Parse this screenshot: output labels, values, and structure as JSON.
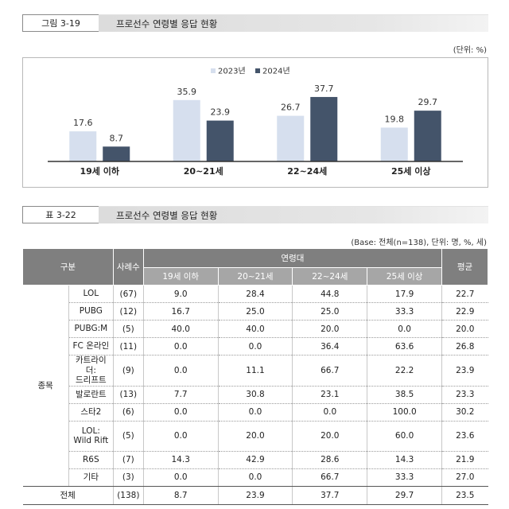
{
  "figure": {
    "label": "그림 3-19",
    "title": "프로선수 연령별 응답 현황",
    "unit": "(단위: %)"
  },
  "chart_data": {
    "type": "bar",
    "categories": [
      "19세 이하",
      "20~21세",
      "22~24세",
      "25세 이상"
    ],
    "series": [
      {
        "name": "2023년",
        "values": [
          17.6,
          35.9,
          26.7,
          19.8
        ],
        "color": "#d6dfee"
      },
      {
        "name": "2024년",
        "values": [
          8.7,
          23.9,
          37.7,
          29.7
        ],
        "color": "#44546a"
      }
    ],
    "ylim": [
      0,
      40
    ],
    "legend": "top-center",
    "grid": false
  },
  "table": {
    "label": "표 3-22",
    "title": "프로선수 연령별 응답 현황",
    "base_note": "(Base: 전체(n=138), 단위: 명, %, 세)",
    "headers": {
      "group": "구분",
      "cases": "사례수",
      "age_band": "연령대",
      "ages": [
        "19세 이하",
        "20~21세",
        "22~24세",
        "25세 이상"
      ],
      "mean": "평균"
    },
    "row_group_label": "종목",
    "rows": [
      {
        "name": "LOL",
        "n": "(67)",
        "values": [
          "9.0",
          "28.4",
          "44.8",
          "17.9"
        ],
        "mean": "22.7"
      },
      {
        "name": "PUBG",
        "n": "(12)",
        "values": [
          "16.7",
          "25.0",
          "25.0",
          "33.3"
        ],
        "mean": "22.9"
      },
      {
        "name": "PUBG:M",
        "n": "(5)",
        "values": [
          "40.0",
          "40.0",
          "20.0",
          "0.0"
        ],
        "mean": "20.0"
      },
      {
        "name": "FC 온라인",
        "n": "(11)",
        "values": [
          "0.0",
          "0.0",
          "36.4",
          "63.6"
        ],
        "mean": "26.8"
      },
      {
        "name": "카트라이더: 드리프트",
        "line1": "카트라이더:",
        "line2": "드리프트",
        "n": "(9)",
        "values": [
          "0.0",
          "11.1",
          "66.7",
          "22.2"
        ],
        "mean": "23.9"
      },
      {
        "name": "발로란트",
        "n": "(13)",
        "values": [
          "7.7",
          "30.8",
          "23.1",
          "38.5"
        ],
        "mean": "23.3"
      },
      {
        "name": "스타2",
        "n": "(6)",
        "values": [
          "0.0",
          "0.0",
          "0.0",
          "100.0"
        ],
        "mean": "30.2"
      },
      {
        "name": "LOL: Wild Rift",
        "line1": "LOL:",
        "line2": "Wild Rift",
        "n": "(5)",
        "values": [
          "0.0",
          "20.0",
          "20.0",
          "60.0"
        ],
        "mean": "23.6"
      },
      {
        "name": "R6S",
        "n": "(7)",
        "values": [
          "14.3",
          "42.9",
          "28.6",
          "14.3"
        ],
        "mean": "21.9"
      },
      {
        "name": "기타",
        "n": "(3)",
        "values": [
          "0.0",
          "0.0",
          "66.7",
          "33.3"
        ],
        "mean": "27.0"
      }
    ],
    "total": {
      "name": "전체",
      "n": "(138)",
      "values": [
        "8.7",
        "23.9",
        "37.7",
        "29.7"
      ],
      "mean": "23.5"
    }
  }
}
